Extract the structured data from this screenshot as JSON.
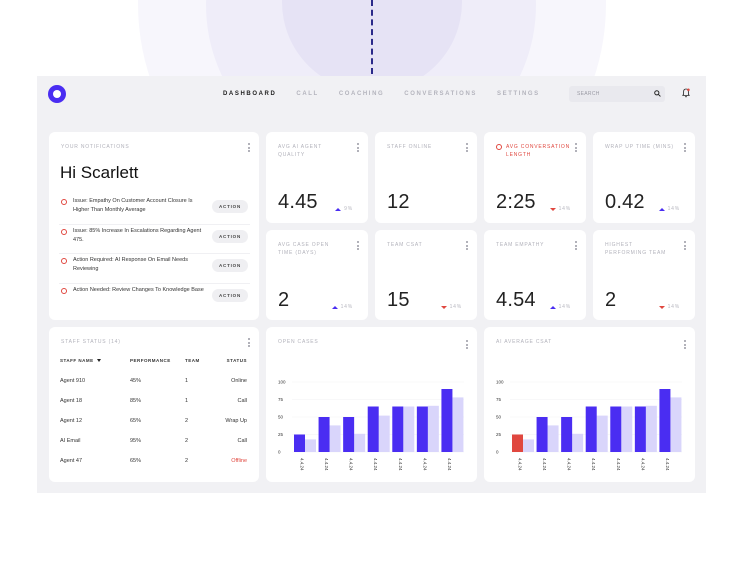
{
  "nav": {
    "items": [
      "DASHBOARD",
      "CALL",
      "COACHING",
      "CONVERSATIONS",
      "SETTINGS"
    ],
    "active": "DASHBOARD"
  },
  "search": {
    "placeholder": "SEARCH"
  },
  "notifications": {
    "title": "YOUR NOTIFICATIONS",
    "greeting": "Hi Scarlett",
    "items": [
      {
        "text": "Issue: Empathy On Customer Account Closure Is Higher Than Monthly Average",
        "action": "ACTION"
      },
      {
        "text": "Issue: 85% Increase In Escalations Regarding Agent 475.",
        "action": "ACTION"
      },
      {
        "text": "Action Required: AI Response On Email Needs Reviewing",
        "action": "ACTION"
      },
      {
        "text": "Action Needed: Review Changes To Knowledge Base",
        "action": "ACTION"
      }
    ]
  },
  "metrics": [
    {
      "title": "AVG AI AGENT QUALITY",
      "value": "4.45",
      "trend": "9%",
      "direction": "up",
      "alert": false
    },
    {
      "title": "STAFF ONLINE",
      "value": "12",
      "trend": "",
      "direction": "",
      "alert": false
    },
    {
      "title": "AVG CONVERSATION LENGTH",
      "value": "2:25",
      "trend": "14%",
      "direction": "down",
      "alert": true
    },
    {
      "title": "WRAP UP TIME (MINS)",
      "value": "0.42",
      "trend": "14%",
      "direction": "up",
      "alert": false
    },
    {
      "title": "AVG CASE OPEN TIME (DAYS)",
      "value": "2",
      "trend": "14%",
      "direction": "up",
      "alert": false
    },
    {
      "title": "TEAM CSAT",
      "value": "15",
      "trend": "14%",
      "direction": "down",
      "alert": false
    },
    {
      "title": "TEAM EMPATHY",
      "value": "4.54",
      "trend": "14%",
      "direction": "up",
      "alert": false
    },
    {
      "title": "HIGHEST PERFORMING TEAM",
      "value": "2",
      "trend": "14%",
      "direction": "down",
      "alert": false
    }
  ],
  "staff": {
    "title": "STAFF STATUS (14)",
    "headers": [
      "STAFF NAME",
      "PERFORMANCE",
      "TEAM",
      "STATUS"
    ],
    "rows": [
      {
        "name": "Agent 910",
        "performance": "45%",
        "team": "1",
        "status": "Online"
      },
      {
        "name": "Agent 18",
        "performance": "85%",
        "team": "1",
        "status": "Call"
      },
      {
        "name": "Agent 12",
        "performance": "65%",
        "team": "2",
        "status": "Wrap Up"
      },
      {
        "name": "AI Email",
        "performance": "95%",
        "team": "2",
        "status": "Call"
      },
      {
        "name": "Agent 47",
        "performance": "65%",
        "team": "2",
        "status": "Offline"
      }
    ]
  },
  "colors": {
    "primary": "#4a2df2",
    "secondary": "#d9d5fb",
    "alert": "#e0473f"
  },
  "chart_data": [
    {
      "type": "bar",
      "title": "OPEN CASES",
      "categories": [
        "4.4.24",
        "4.4.24",
        "4.4.24",
        "4.4.24",
        "4.4.24",
        "4.4.24",
        "4.4.24"
      ],
      "series": [
        {
          "values": [
            25,
            50,
            50,
            65,
            65,
            65,
            90
          ]
        },
        {
          "values": [
            18,
            38,
            26,
            52,
            65,
            66,
            78
          ]
        }
      ],
      "yticks": [
        "100",
        "75",
        "50",
        "25",
        "0"
      ],
      "ylim": [
        0,
        100
      ]
    },
    {
      "type": "bar",
      "title": "AI AVERAGE CSAT",
      "categories": [
        "4.4.24",
        "4.4.24",
        "4.4.24",
        "4.4.24",
        "4.4.24",
        "4.4.24",
        "4.4.24"
      ],
      "series": [
        {
          "values": [
            25,
            50,
            50,
            65,
            65,
            65,
            90
          ]
        },
        {
          "values": [
            18,
            38,
            26,
            52,
            65,
            66,
            78
          ]
        }
      ],
      "highlight_first": true,
      "yticks": [
        "100",
        "75",
        "50",
        "25",
        "0"
      ],
      "ylim": [
        0,
        100
      ]
    }
  ]
}
